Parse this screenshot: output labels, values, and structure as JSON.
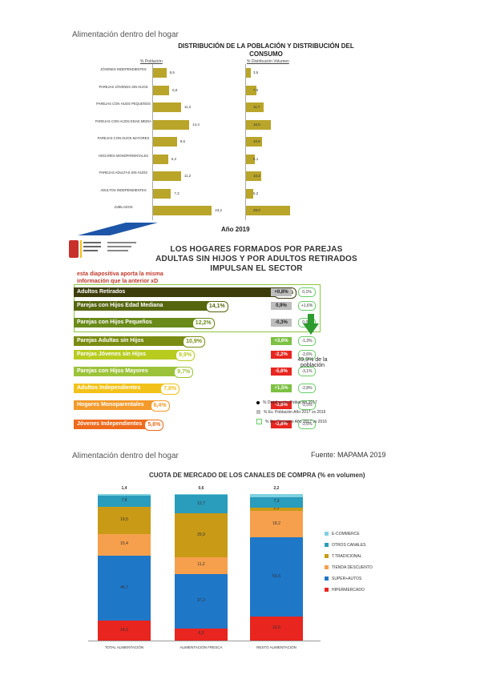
{
  "section1": {
    "heading": "Alimentación dentro del hogar",
    "title_line1": "DISTRIBUCIÓN DE LA POBLACIÓN Y DISTRIBUCIÓN DEL",
    "title_line2": "CONSUMO",
    "left_header": "% Población",
    "right_header": "% Distribución Volumen",
    "caption": "Año 2019"
  },
  "section2": {
    "title_line1": "LOS HOGARES FORMADOS POR PAREJAS",
    "title_line2": "ADULTAS SIN HIJOS Y POR ADULTOS RETIRADOS",
    "title_line3": "IMPULSAN EL SECTOR",
    "note_line1": "esta diapositiva aporta la misma",
    "note_line2": "información que la anterior xD",
    "callout_value": "49,9% de la",
    "callout_text": "población",
    "legend": [
      "% Distribución Población 2017",
      "% Ev. Población Año 2017 vs 2016",
      "% Ev. Consumo Año 2017 vs 2016"
    ],
    "rows": [
      {
        "label": "Adultos Retirados",
        "pct": "23,6%",
        "chg1": "+0,8%",
        "chg2": "0,1%",
        "color": "#3d3d0c",
        "chg1_color": "#bdbdbd"
      },
      {
        "label": "Parejas con Hijos Edad Mediana",
        "pct": "14,1%",
        "chg1": "0,9%",
        "chg2": "+1,6%",
        "color": "#55660f",
        "chg1_color": "#bdbdbd"
      },
      {
        "label": "Parejas con Hijos Pequeños",
        "pct": "12,2%",
        "chg1": "-0,3%",
        "chg2": "0,0%",
        "color": "#6a8a1a",
        "chg1_color": "#bdbdbd"
      },
      {
        "label": "Parejas Adultas sin Hijos",
        "pct": "10,9%",
        "chg1": "+3,6%",
        "chg2": "-1,3%",
        "color": "#7a8c12",
        "chg1_color": "#7cc142"
      },
      {
        "label": "Parejas Jóvenes sin Hijos",
        "pct": "9,9%",
        "chg1": "-2,2%",
        "chg2": "-2,6%",
        "color": "#b8cc20",
        "chg1_color": "#e8251f"
      },
      {
        "label": "Parejas con Hijos Mayores",
        "pct": "9,7%",
        "chg1": "-5,6%",
        "chg2": "-3,1%",
        "color": "#9cc23a",
        "chg1_color": "#e8251f"
      },
      {
        "label": "Adultos Independientes",
        "pct": "7,8%",
        "chg1": "+1,5%",
        "chg2": "-2,8%",
        "color": "#f2c21a",
        "chg1_color": "#7cc142"
      },
      {
        "label": "Hogares Monoparentales",
        "pct": "6,4%",
        "chg1": "-3,8%",
        "chg2": "-2,5%",
        "color": "#f39a2a",
        "chg1_color": "#e8251f"
      },
      {
        "label": "Jóvenes Independientes",
        "pct": "5,6%",
        "chg1": "-3,8%",
        "chg2": "-2,6%",
        "color": "#ee6a1c",
        "chg1_color": "#e8251f"
      }
    ]
  },
  "section3": {
    "heading": "Alimentación dentro del hogar",
    "source": "Fuente: MAPAMA 2019",
    "title": "CUOTA DE MERCADO DE LOS CANALES DE COMPRA (% en volumen)"
  },
  "chart_data": [
    {
      "type": "bar",
      "title": "DISTRIBUCIÓN DE LA POBLACIÓN Y DISTRIBUCIÓN DEL CONSUMO",
      "categories": [
        "JÓVENES INDEPENDIENTES",
        "PAREJAS JÓVENES SIN HIJOS",
        "PAREJAS CON HIJOS PEQUEÑOS",
        "PAREJAS CON HIJOS EDAD MEDIA",
        "PAREJAS CON HIJOS MAYORES",
        "HOGARES MONOPARENTALES",
        "PAREJAS ADULTAS SIN HIJOS",
        "ADULTOS INDEPENDIENTES",
        "JUBILADOS"
      ],
      "series": [
        {
          "name": "% Población",
          "values": [
            5.5,
            6.6,
            11.2,
            14.4,
            9.6,
            6.2,
            11.2,
            7.3,
            23.2
          ]
        },
        {
          "name": "% Distribución Volumen",
          "values": [
            3.5,
            7.0,
            11.7,
            16.0,
            10.6,
            6.1,
            10.2,
            5.2,
            28.0
          ]
        }
      ],
      "colors": [
        "#b9a52a"
      ]
    },
    {
      "type": "bar",
      "title": "LOS HOGARES FORMADOS POR PAREJAS ADULTAS SIN HIJOS Y POR ADULTOS RETIRADOS IMPULSAN EL SECTOR",
      "categories": [
        "Adultos Retirados",
        "Parejas con Hijos Edad Mediana",
        "Parejas con Hijos Pequeños",
        "Parejas Adultas sin Hijos",
        "Parejas Jóvenes sin Hijos",
        "Parejas con Hijos Mayores",
        "Adultos Independientes",
        "Hogares Monoparentales",
        "Jóvenes Independientes"
      ],
      "series": [
        {
          "name": "% Distribución Población 2017",
          "values": [
            23.6,
            14.1,
            12.2,
            10.9,
            9.9,
            9.7,
            7.8,
            6.4,
            5.6
          ]
        },
        {
          "name": "% Ev. Población Año 2017 vs 2016",
          "values": [
            0.8,
            0.9,
            -0.3,
            3.6,
            -2.2,
            -5.6,
            1.5,
            -3.8,
            -3.8
          ]
        },
        {
          "name": "% Ev. Consumo Año 2017 vs 2016",
          "values": [
            0.1,
            1.6,
            0.0,
            -1.3,
            -2.6,
            -3.1,
            -2.8,
            -2.5,
            -2.6
          ]
        }
      ]
    },
    {
      "type": "bar",
      "stacked": true,
      "title": "CUOTA DE MERCADO DE LOS CANALES DE COMPRA (% en volumen)",
      "categories": [
        "TOTAL ALIMENTACIÓN",
        "ALIMENTACIÓN FRESCA",
        "RESTO ALIMENTACIÓN"
      ],
      "series": [
        {
          "name": "HIPERMERCADO",
          "values": [
            14.2,
            8.3,
            16.5
          ],
          "color": "#e8251f"
        },
        {
          "name": "SUPER+AUTOS",
          "values": [
            46.7,
            37.2,
            55.5
          ],
          "color": "#1f77c8"
        },
        {
          "name": "TIENDA DESCUENTO",
          "values": [
            15.4,
            11.2,
            18.2
          ],
          "color": "#f6a04d"
        },
        {
          "name": "T.TRADICIONAL",
          "values": [
            19.5,
            29.9,
            2.5
          ],
          "color": "#c99a16"
        },
        {
          "name": "OTROS CANALES",
          "values": [
            7.8,
            12.7,
            7.3
          ],
          "color": "#2a9cbc"
        },
        {
          "name": "E-COMMERCE",
          "values": [
            1.4,
            0.6,
            2.2
          ],
          "color": "#7fd2e0"
        }
      ],
      "legend_position": "right"
    }
  ]
}
